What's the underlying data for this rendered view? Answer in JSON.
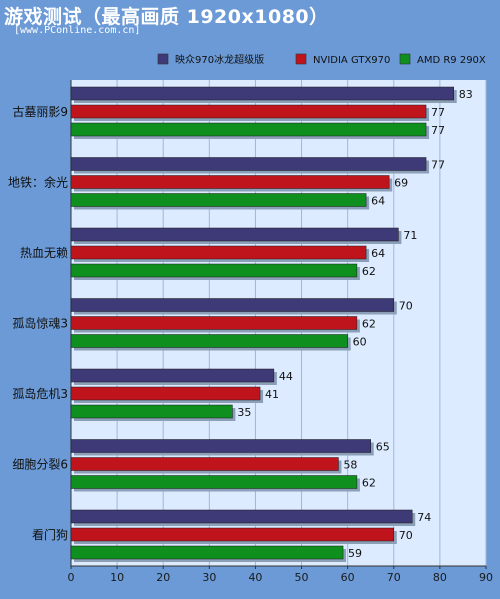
{
  "header": {
    "title": "游戏测试（最高画质 1920x1080）",
    "subtitle": "[www.PConline.com.cn]"
  },
  "colors": {
    "frame": "#6b9ad6",
    "plot_bg": "#dcebff",
    "grid": "#9fb7d8",
    "legend_bg": "#ffffff"
  },
  "chart_data": {
    "type": "bar",
    "orientation": "horizontal",
    "categories": [
      "古墓丽影9",
      "地铁：余光",
      "热血无赖",
      "孤岛惊魂3",
      "孤岛危机3",
      "细胞分裂6",
      "看门狗"
    ],
    "series": [
      {
        "name": "映众970冰龙超级版",
        "color": "#3e3a78",
        "values": [
          83,
          77,
          71,
          70,
          44,
          65,
          74
        ]
      },
      {
        "name": "NVIDIA GTX970",
        "color": "#c0141c",
        "values": [
          77,
          69,
          64,
          62,
          41,
          58,
          70
        ]
      },
      {
        "name": "AMD R9 290X",
        "color": "#0e8f1e",
        "values": [
          77,
          64,
          62,
          60,
          35,
          62,
          59
        ]
      }
    ],
    "xlim": [
      0,
      90
    ],
    "xticks": [
      0,
      10,
      20,
      30,
      40,
      50,
      60,
      70,
      80,
      90
    ],
    "grid": "vertical",
    "legend": "top"
  }
}
